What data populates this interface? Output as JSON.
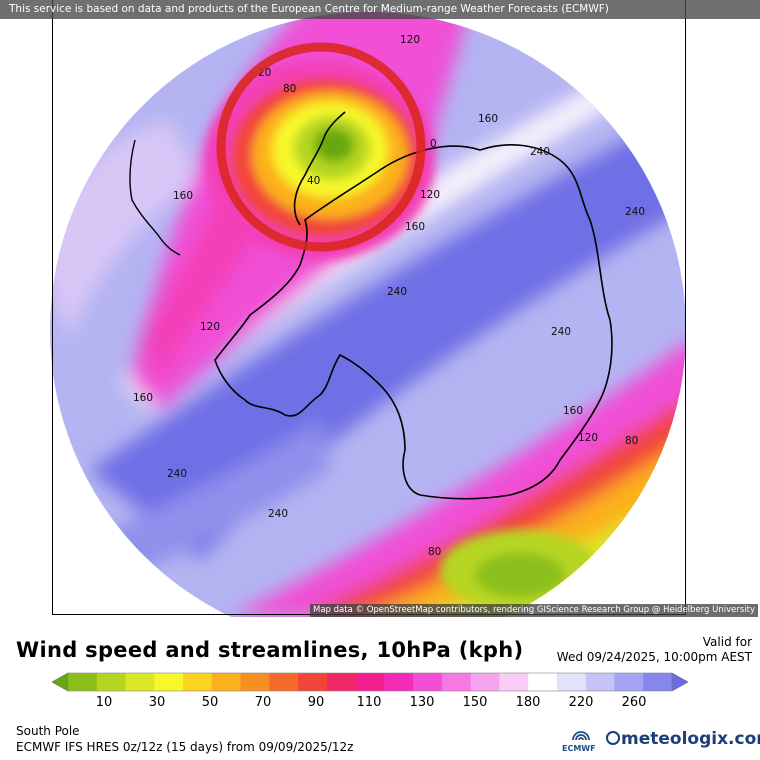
{
  "header": {
    "source_credit": "This service is based on data and products of the European Centre for Medium-range Weather Forecasts (ECMWF)"
  },
  "map": {
    "attribution": "Map data © OpenStreetMap contributors, rendering GIScience Research Group @ Heidelberg University",
    "contour_labels": [
      {
        "id": "l1",
        "text": "160"
      },
      {
        "id": "l2",
        "text": "120"
      },
      {
        "id": "l3",
        "text": "20"
      },
      {
        "id": "l4",
        "text": "80"
      },
      {
        "id": "l5",
        "text": "160"
      },
      {
        "id": "l6",
        "text": "240"
      },
      {
        "id": "l7",
        "text": "0"
      },
      {
        "id": "l8",
        "text": "40"
      },
      {
        "id": "l9",
        "text": "120"
      },
      {
        "id": "l10",
        "text": "160"
      },
      {
        "id": "l11",
        "text": "240"
      },
      {
        "id": "l12",
        "text": "160"
      },
      {
        "id": "l13",
        "text": "240"
      },
      {
        "id": "l14",
        "text": "120"
      },
      {
        "id": "l15",
        "text": "240"
      },
      {
        "id": "l16",
        "text": "160"
      },
      {
        "id": "l17",
        "text": "160"
      },
      {
        "id": "l18",
        "text": "120"
      },
      {
        "id": "l19",
        "text": "80"
      },
      {
        "id": "l20",
        "text": "240"
      },
      {
        "id": "l21",
        "text": "240"
      },
      {
        "id": "l22",
        "text": "80"
      }
    ]
  },
  "legend": {
    "title": "Wind speed and streamlines, 10hPa (kph)",
    "ticks": [
      "10",
      "30",
      "50",
      "70",
      "90",
      "110",
      "130",
      "150",
      "180",
      "220",
      "260"
    ],
    "colors": [
      "#66a80f",
      "#8cbf1a",
      "#b5d521",
      "#dbe827",
      "#f7f72a",
      "#fbd321",
      "#fbb01f",
      "#f98e22",
      "#f66a2d",
      "#f2453a",
      "#f02863",
      "#f31f90",
      "#f32ab6",
      "#f34fd4",
      "#f479e2",
      "#f6a4ee",
      "#f9cdf6",
      "#ffffff",
      "#e2e2fa",
      "#c4c4f6",
      "#a4a4f2",
      "#8686ee",
      "#6a6aea"
    ]
  },
  "valid": {
    "label": "Valid for",
    "datetime": "Wed 09/24/2025, 10:00pm AEST"
  },
  "footer": {
    "region": "South Pole",
    "model": "ECMWF IFS HRES 0z/12z (15 days) from  09/09/2025/12z",
    "ecmwf_logo_text": "ECMWF",
    "site_logo_text": "meteologix.com"
  }
}
